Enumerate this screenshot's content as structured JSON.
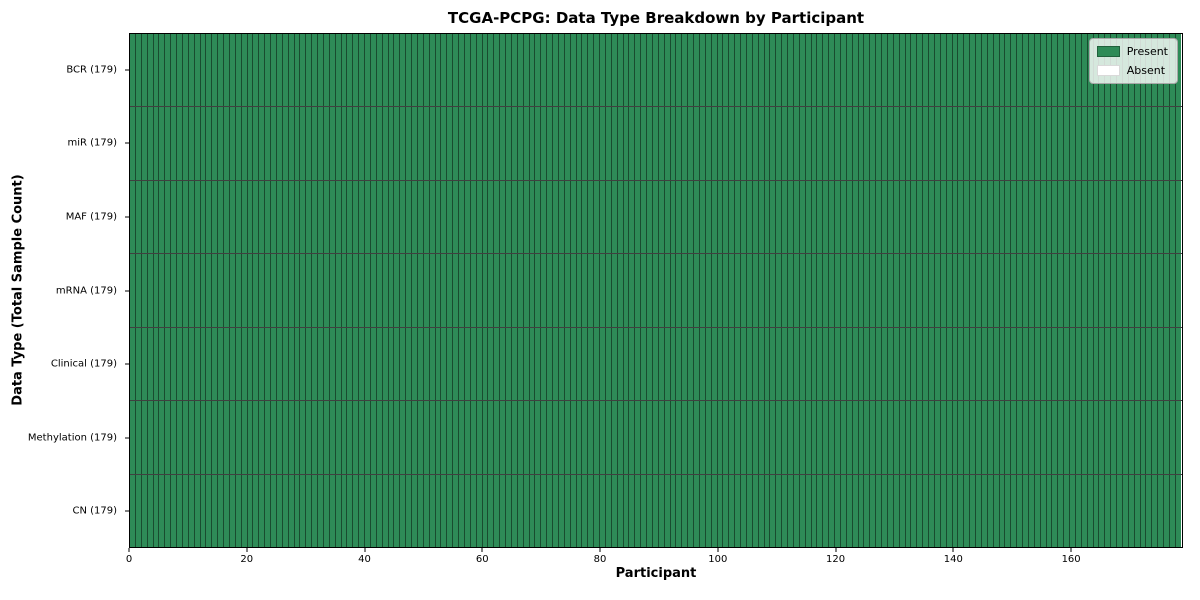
{
  "figure": {
    "title": "TCGA-PCPG: Data Type Breakdown by Participant",
    "xlabel": "Participant",
    "ylabel": "Data Type (Total Sample Count)"
  },
  "chart_data": {
    "type": "heatmap",
    "title": "TCGA-PCPG: Data Type Breakdown by Participant",
    "xlabel": "Participant",
    "ylabel": "Data Type (Total Sample Count)",
    "x_range": [
      0,
      179
    ],
    "x_ticks": [
      0,
      20,
      40,
      60,
      80,
      100,
      120,
      140,
      160
    ],
    "n_participants": 179,
    "grid": "cell-borders",
    "rows": [
      {
        "label": "BCR (179)",
        "data_type": "BCR",
        "total_sample_count": 179,
        "present": 179,
        "absent": 0
      },
      {
        "label": "miR (179)",
        "data_type": "miR",
        "total_sample_count": 179,
        "present": 179,
        "absent": 0
      },
      {
        "label": "MAF (179)",
        "data_type": "MAF",
        "total_sample_count": 179,
        "present": 179,
        "absent": 0
      },
      {
        "label": "mRNA (179)",
        "data_type": "mRNA",
        "total_sample_count": 179,
        "present": 179,
        "absent": 0
      },
      {
        "label": "Clinical (179)",
        "data_type": "Clinical",
        "total_sample_count": 179,
        "present": 179,
        "absent": 0
      },
      {
        "label": "Methylation (179)",
        "data_type": "Methylation",
        "total_sample_count": 179,
        "present": 179,
        "absent": 0
      },
      {
        "label": "CN (179)",
        "data_type": "CN",
        "total_sample_count": 179,
        "present": 179,
        "absent": 0
      }
    ],
    "legend": {
      "position": "upper right",
      "items": [
        {
          "label": "Present",
          "color": "#2e8b57"
        },
        {
          "label": "Absent",
          "color": "#ffffff"
        }
      ]
    },
    "colors": {
      "present": "#2e8b57",
      "absent": "#ffffff",
      "cell_edge": "#000000",
      "plot_border": "#000000"
    }
  }
}
